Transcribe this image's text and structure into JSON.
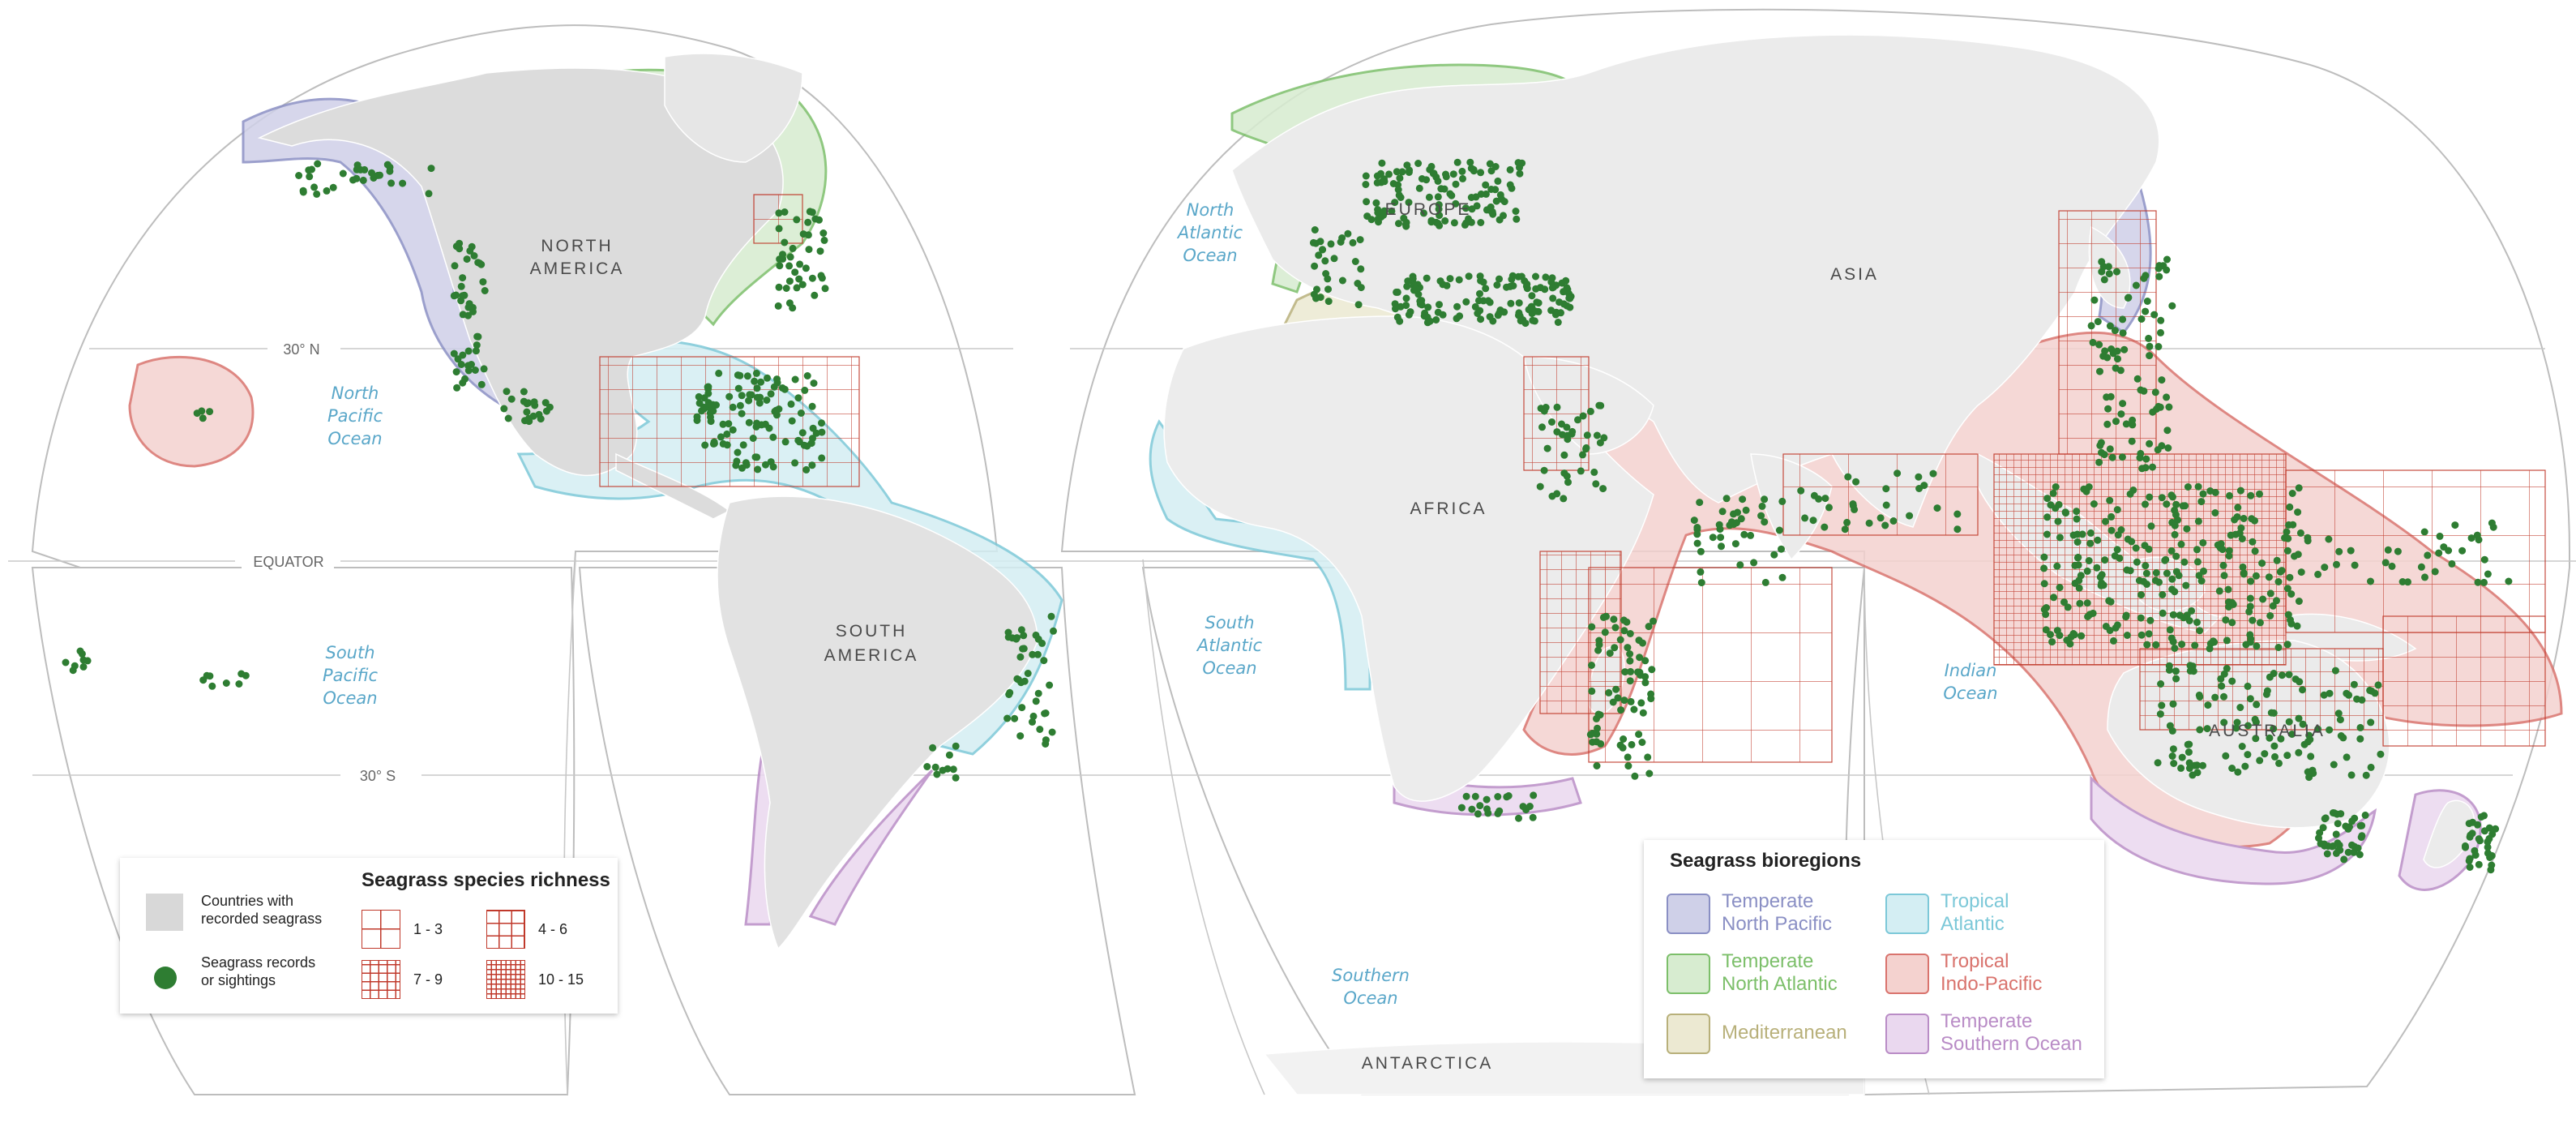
{
  "labels": {
    "continents": {
      "north_america": [
        "NORTH",
        "AMERICA"
      ],
      "south_america": [
        "SOUTH",
        "AMERICA"
      ],
      "europe": "EUROPE",
      "asia": "ASIA",
      "africa": "AFRICA",
      "australia": "AUSTRALIA",
      "antarctica": "ANTARCTICA"
    },
    "oceans": {
      "north_pacific": [
        "North",
        "Pacific",
        "Ocean"
      ],
      "south_pacific": [
        "South",
        "Pacific",
        "Ocean"
      ],
      "north_atlantic": [
        "North",
        "Atlantic",
        "Ocean"
      ],
      "south_atlantic": [
        "South",
        "Atlantic",
        "Ocean"
      ],
      "indian": [
        "Indian",
        "Ocean"
      ],
      "southern": [
        "Southern",
        "Ocean"
      ]
    },
    "latitudes": {
      "n30": "30° N",
      "equator": "EQUATOR",
      "s30": "30° S"
    }
  },
  "legend_richness": {
    "countries_label": "Countries with\nrecorded seagrass",
    "records_label": "Seagrass records\nor sightings",
    "title": "Seagrass species richness",
    "classes": [
      "1 - 3",
      "4 - 6",
      "7 - 9",
      "10 - 15"
    ]
  },
  "legend_bioregions": {
    "title": "Seagrass bioregions",
    "items": [
      {
        "label": "Temperate\nNorth Pacific",
        "color": "#8a8fc4",
        "fill": "#cfd0e8"
      },
      {
        "label": "Tropical\nAtlantic",
        "color": "#7cc8d8",
        "fill": "#d4eef3"
      },
      {
        "label": "Temperate\nNorth Atlantic",
        "color": "#7cbf6a",
        "fill": "#d7ecd0"
      },
      {
        "label": "Tropical\nIndo-Pacific",
        "color": "#d9736d",
        "fill": "#f4d2cf"
      },
      {
        "label": "Mediterranean",
        "color": "#b8b07a",
        "fill": "#ece9d2"
      },
      {
        "label": "Temperate\nSouthern Ocean",
        "color": "#b98cc6",
        "fill": "#ead8ef"
      }
    ]
  },
  "colors": {
    "land": "#ebebeb",
    "land_recorded": "#d8d8d8",
    "records": "#2e7d32",
    "richness_grid": "#c0392b",
    "ocean_label": "#5aa7c9"
  }
}
